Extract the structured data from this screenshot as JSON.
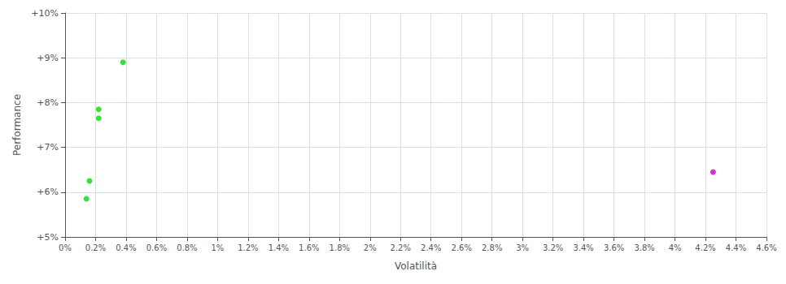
{
  "chart_data": {
    "type": "scatter",
    "xlabel": "Volatilità",
    "ylabel": "Performance",
    "xlim": [
      0,
      0.046
    ],
    "ylim": [
      0.05,
      0.1
    ],
    "xticks": [
      {
        "value": 0,
        "label": "0%"
      },
      {
        "value": 0.002,
        "label": "0.2%"
      },
      {
        "value": 0.004,
        "label": "0.4%"
      },
      {
        "value": 0.006,
        "label": "0.6%"
      },
      {
        "value": 0.008,
        "label": "0.8%"
      },
      {
        "value": 0.01,
        "label": "1%"
      },
      {
        "value": 0.012,
        "label": "1.2%"
      },
      {
        "value": 0.014,
        "label": "1.4%"
      },
      {
        "value": 0.016,
        "label": "1.6%"
      },
      {
        "value": 0.018,
        "label": "1.8%"
      },
      {
        "value": 0.02,
        "label": "2%"
      },
      {
        "value": 0.022,
        "label": "2.2%"
      },
      {
        "value": 0.024,
        "label": "2.4%"
      },
      {
        "value": 0.026,
        "label": "2.6%"
      },
      {
        "value": 0.028,
        "label": "2.8%"
      },
      {
        "value": 0.03,
        "label": "3%"
      },
      {
        "value": 0.032,
        "label": "3.2%"
      },
      {
        "value": 0.034,
        "label": "3.4%"
      },
      {
        "value": 0.036,
        "label": "3.6%"
      },
      {
        "value": 0.038,
        "label": "3.8%"
      },
      {
        "value": 0.04,
        "label": "4%"
      },
      {
        "value": 0.042,
        "label": "4.2%"
      },
      {
        "value": 0.044,
        "label": "4.4%"
      },
      {
        "value": 0.046,
        "label": "4.6%"
      }
    ],
    "yticks": [
      {
        "value": 0.05,
        "label": "+5%"
      },
      {
        "value": 0.06,
        "label": "+6%"
      },
      {
        "value": 0.07,
        "label": "+7%"
      },
      {
        "value": 0.08,
        "label": "+8%"
      },
      {
        "value": 0.09,
        "label": "+9%"
      },
      {
        "value": 0.1,
        "label": "+10%"
      }
    ],
    "grid": true,
    "series": [
      {
        "color": "#00dd00",
        "x": [
          0.0038,
          0.0022,
          0.0022,
          0.0016,
          0.0014
        ],
        "values": [
          0.089,
          0.0785,
          0.0765,
          0.0625,
          0.0585
        ]
      },
      {
        "color": "#cc00cc",
        "x": [
          0.0425
        ],
        "values": [
          0.0645
        ]
      }
    ]
  }
}
